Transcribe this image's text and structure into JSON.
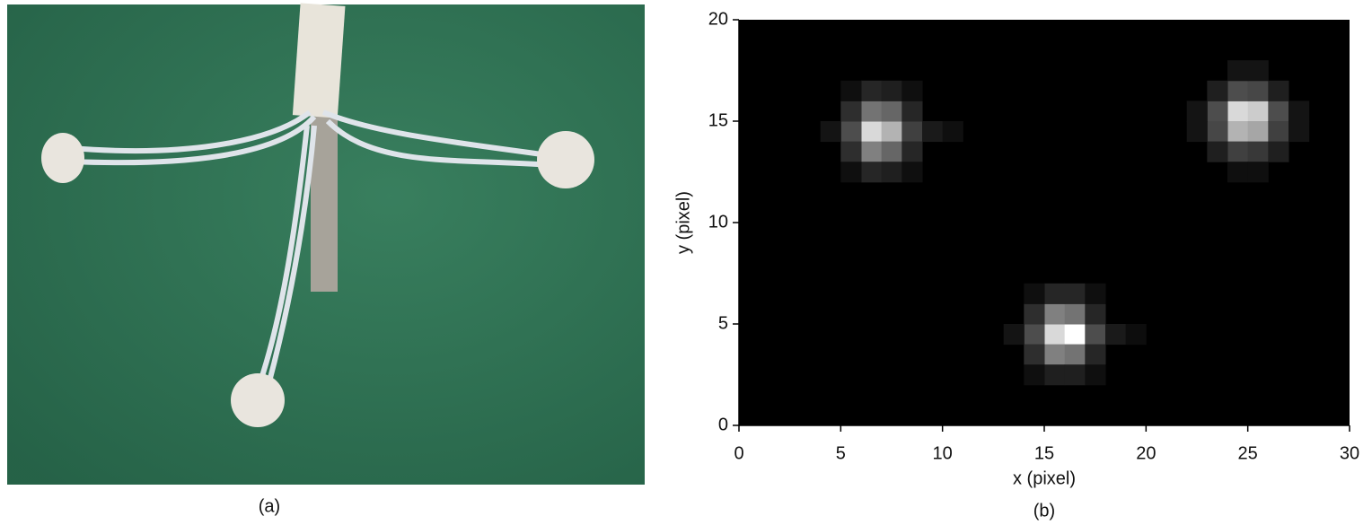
{
  "photo": {
    "caption": "(a)"
  },
  "chart_data": {
    "type": "heatmap",
    "caption": "(b)",
    "xlabel": "x (pixel)",
    "ylabel": "y (pixel)",
    "colormap": "gray",
    "xlim": [
      0,
      30
    ],
    "ylim": [
      0,
      20
    ],
    "xticks": [
      0,
      5,
      10,
      15,
      20,
      25,
      30
    ],
    "yticks": [
      0,
      5,
      10,
      15,
      20
    ],
    "x": [
      6,
      7,
      6,
      7,
      6,
      7,
      5,
      8,
      5,
      8,
      5,
      8,
      6,
      7,
      6,
      7,
      4,
      9,
      10,
      5,
      8,
      5,
      8,
      24,
      25,
      24,
      25,
      23,
      26,
      23,
      26,
      24,
      25,
      24,
      25,
      23,
      26,
      23,
      26,
      22,
      27,
      22,
      27,
      24,
      25,
      24,
      25,
      15,
      16,
      15,
      16,
      15,
      16,
      14,
      17,
      14,
      17,
      14,
      17,
      15,
      16,
      15,
      16,
      13,
      18,
      19,
      14,
      17,
      14,
      17
    ],
    "y": [
      14,
      14,
      15,
      15,
      13,
      13,
      14,
      14,
      15,
      15,
      13,
      13,
      16,
      16,
      12,
      12,
      14,
      14,
      14,
      16,
      16,
      12,
      12,
      15,
      15,
      14,
      14,
      15,
      15,
      14,
      14,
      16,
      16,
      13,
      13,
      16,
      16,
      13,
      13,
      15,
      15,
      14,
      14,
      17,
      17,
      12,
      12,
      4,
      4,
      3,
      3,
      5,
      5,
      4,
      4,
      3,
      3,
      5,
      5,
      6,
      6,
      2,
      2,
      4,
      4,
      4,
      6,
      6,
      2,
      2
    ],
    "values": [
      0.85,
      0.7,
      0.45,
      0.4,
      0.5,
      0.4,
      0.3,
      0.25,
      0.18,
      0.15,
      0.18,
      0.15,
      0.15,
      0.12,
      0.15,
      0.12,
      0.08,
      0.1,
      0.06,
      0.06,
      0.06,
      0.06,
      0.06,
      0.85,
      0.8,
      0.7,
      0.65,
      0.3,
      0.3,
      0.28,
      0.25,
      0.3,
      0.28,
      0.25,
      0.22,
      0.12,
      0.12,
      0.12,
      0.12,
      0.08,
      0.08,
      0.08,
      0.08,
      0.08,
      0.08,
      0.06,
      0.06,
      0.85,
      1.0,
      0.5,
      0.45,
      0.5,
      0.45,
      0.3,
      0.3,
      0.18,
      0.15,
      0.18,
      0.15,
      0.15,
      0.15,
      0.12,
      0.12,
      0.08,
      0.1,
      0.05,
      0.06,
      0.06,
      0.06,
      0.06
    ]
  }
}
